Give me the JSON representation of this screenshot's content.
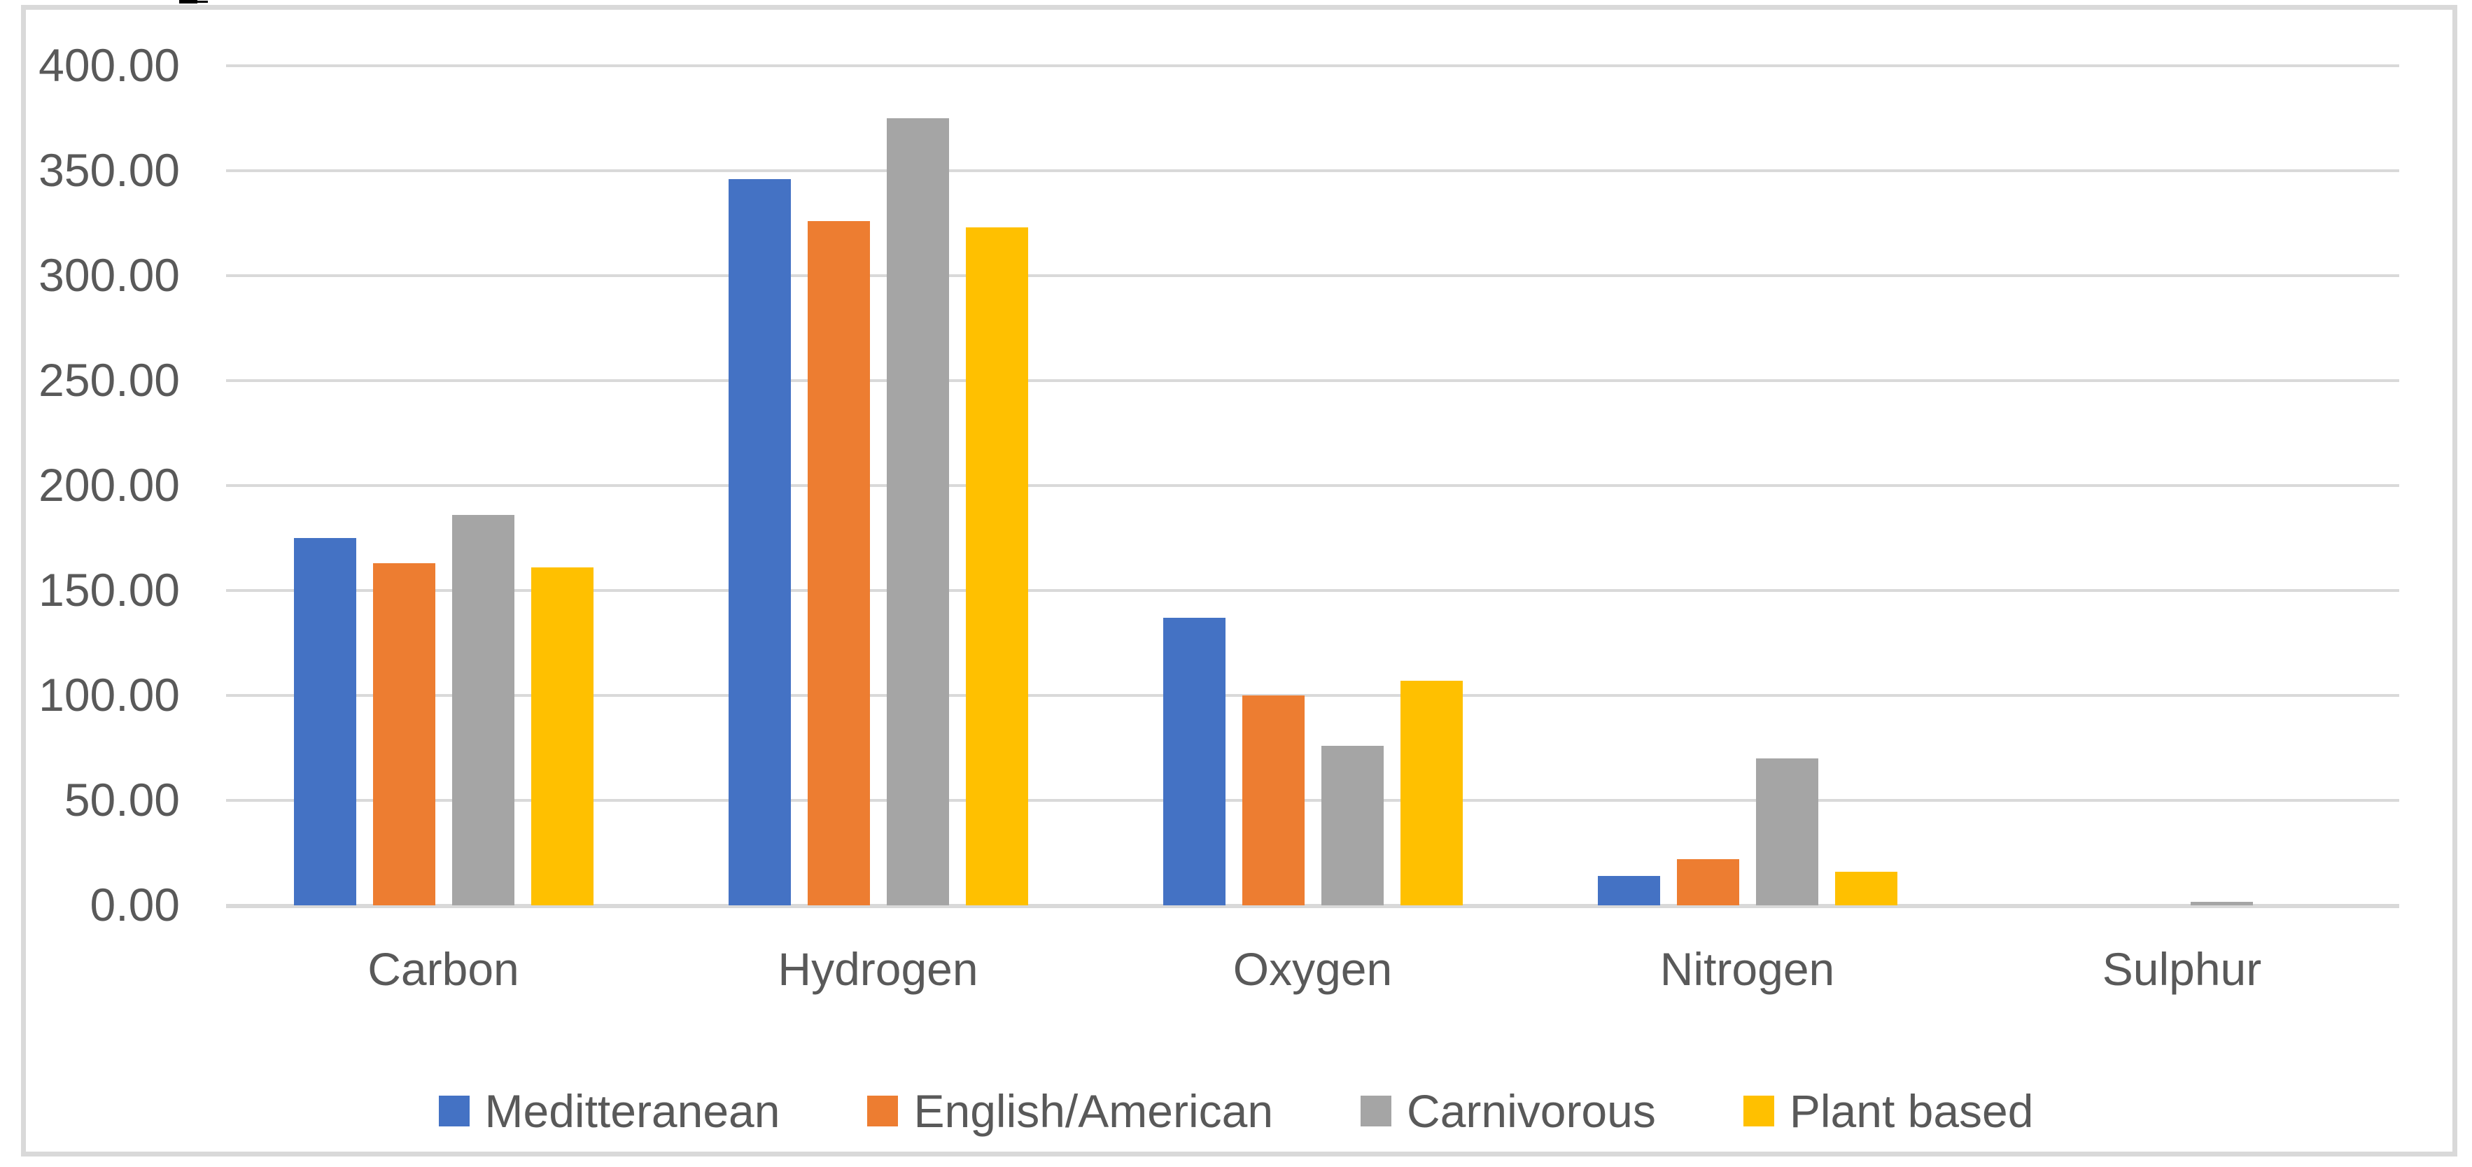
{
  "chart_data": {
    "type": "bar",
    "title": "",
    "xlabel": "",
    "ylabel": "",
    "categories": [
      "Carbon",
      "Hydrogen",
      "Oxygen",
      "Nitrogen",
      "Sulphur"
    ],
    "series": [
      {
        "name": "Meditteranean",
        "color": "#4472C4",
        "values": [
          175,
          346,
          137,
          14,
          0
        ]
      },
      {
        "name": "English/American",
        "color": "#ED7D31",
        "values": [
          163,
          326,
          100,
          22,
          0
        ]
      },
      {
        "name": "Carnivorous",
        "color": "#A5A5A5",
        "values": [
          186,
          375,
          76,
          70,
          1.7
        ]
      },
      {
        "name": "Plant based",
        "color": "#FFC000",
        "values": [
          161,
          323,
          107,
          16,
          0
        ]
      }
    ],
    "ylim": [
      0,
      400
    ],
    "ytick_step": 50,
    "yticks": [
      "0.00",
      "50.00",
      "100.00",
      "150.00",
      "200.00",
      "250.00",
      "300.00",
      "350.00",
      "400.00"
    ],
    "grid": true,
    "legend_position": "bottom",
    "colors": {
      "text": "#595959",
      "gridline": "#D9D9D9",
      "axis_line": "#D9D9D9",
      "chart_border": "#D9D9D9",
      "background": "#FFFFFF",
      "top_edge_artifact": "#000000"
    }
  }
}
